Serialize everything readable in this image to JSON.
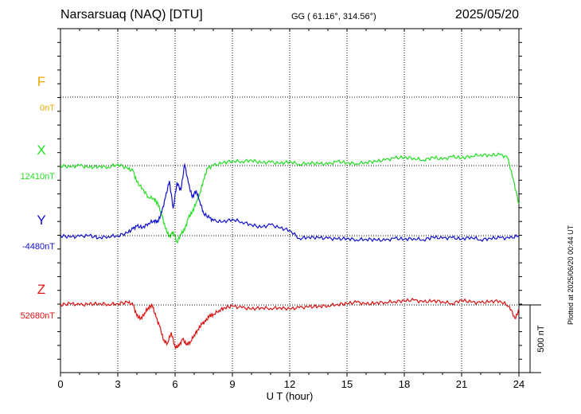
{
  "header": {
    "station": "Narsarsuaq (NAQ)  [DTU]",
    "coords": "GG ( 61.16°, 314.56°)",
    "date": "2025/05/20"
  },
  "footer": {
    "plotted": "Plotted at 2025/06/20 00:44 UT"
  },
  "colors": {
    "F": "#f0a800",
    "X": "#22e022",
    "Y": "#1010d0",
    "Z": "#e01010"
  },
  "chart_data": {
    "type": "line",
    "xlabel": "U T (hour)",
    "xlim": [
      0,
      24
    ],
    "xticks": [
      0,
      3,
      6,
      9,
      12,
      15,
      18,
      21,
      24
    ],
    "grid": true,
    "scale_bar": {
      "label": "500 nT",
      "value_nT": 500
    },
    "series": [
      {
        "name": "F",
        "baseline_label": "0nT",
        "values": []
      },
      {
        "name": "X",
        "baseline_label": "12410nT",
        "x": [
          0,
          0.5,
          1,
          1.5,
          2,
          2.5,
          3,
          3.5,
          3.8,
          4,
          4.3,
          4.6,
          4.9,
          5.1,
          5.3,
          5.5,
          5.7,
          5.9,
          6.1,
          6.3,
          6.5,
          6.7,
          6.9,
          7.1,
          7.3,
          7.5,
          7.7,
          8,
          8.5,
          9,
          9.5,
          10,
          10.5,
          11,
          11.5,
          12,
          12.5,
          13,
          13.5,
          14,
          14.5,
          15,
          15.5,
          16,
          16.5,
          17,
          17.5,
          18,
          18.5,
          19,
          19.5,
          20,
          20.5,
          21,
          21.5,
          22,
          22.5,
          23,
          23.4,
          23.7,
          24
        ],
        "values": [
          0,
          -10,
          0,
          -15,
          -5,
          -10,
          10,
          -20,
          -40,
          -120,
          -170,
          -230,
          -240,
          -280,
          -360,
          -460,
          -520,
          -480,
          -560,
          -500,
          -470,
          -380,
          -340,
          -270,
          -200,
          -100,
          -20,
          0,
          20,
          35,
          30,
          40,
          20,
          25,
          15,
          30,
          10,
          20,
          15,
          10,
          30,
          20,
          15,
          25,
          30,
          40,
          55,
          60,
          55,
          40,
          60,
          45,
          65,
          55,
          70,
          80,
          75,
          80,
          60,
          -100,
          -280
        ]
      },
      {
        "name": "Y",
        "baseline_label": "-4480nT",
        "x": [
          0,
          0.5,
          1,
          1.5,
          2,
          2.5,
          3,
          3.5,
          3.8,
          4,
          4.3,
          4.6,
          4.9,
          5.1,
          5.3,
          5.5,
          5.7,
          5.9,
          6.1,
          6.3,
          6.5,
          6.7,
          6.9,
          7.1,
          7.3,
          7.5,
          7.8,
          8,
          8.5,
          9,
          9.5,
          10,
          10.5,
          11,
          11.5,
          12,
          12.5,
          13,
          13.5,
          14,
          14.5,
          15,
          15.5,
          16,
          16.5,
          17,
          17.5,
          18,
          18.5,
          19,
          19.5,
          20,
          20.5,
          21,
          21.5,
          22,
          22.5,
          23,
          23.5,
          24
        ],
        "values": [
          0,
          -10,
          -5,
          0,
          -15,
          -5,
          0,
          20,
          50,
          70,
          60,
          90,
          110,
          100,
          170,
          280,
          400,
          200,
          390,
          330,
          520,
          380,
          280,
          330,
          250,
          160,
          130,
          110,
          100,
          120,
          100,
          80,
          60,
          80,
          55,
          40,
          -20,
          -10,
          -15,
          -20,
          -25,
          -20,
          -30,
          -25,
          -30,
          -35,
          -20,
          -25,
          -20,
          -30,
          -10,
          -20,
          -15,
          -25,
          -10,
          -30,
          -20,
          -15,
          -20,
          0
        ]
      },
      {
        "name": "Z",
        "baseline_label": "52680nT",
        "x": [
          0,
          0.5,
          1,
          1.5,
          2,
          2.5,
          3,
          3.5,
          3.8,
          4,
          4.2,
          4.4,
          4.6,
          4.8,
          5,
          5.2,
          5.4,
          5.6,
          5.8,
          6,
          6.2,
          6.4,
          6.6,
          6.8,
          7,
          7.2,
          7.4,
          7.6,
          7.8,
          8,
          8.3,
          8.6,
          9,
          9.5,
          10,
          10.5,
          11,
          11.5,
          12,
          12.5,
          13,
          13.5,
          14,
          14.5,
          15,
          15.5,
          16,
          16.5,
          17,
          17.5,
          18,
          18.5,
          19,
          19.5,
          20,
          20.5,
          21,
          21.5,
          22,
          22.5,
          23,
          23.5,
          23.8,
          24
        ],
        "values": [
          0,
          10,
          0,
          5,
          10,
          5,
          10,
          20,
          0,
          -80,
          -100,
          -60,
          -20,
          0,
          -90,
          -160,
          -260,
          -280,
          -200,
          -310,
          -300,
          -250,
          -290,
          -270,
          -220,
          -180,
          -140,
          -120,
          -80,
          -70,
          -40,
          -20,
          -10,
          -20,
          -30,
          -20,
          -25,
          -20,
          -30,
          -20,
          -15,
          -10,
          -5,
          5,
          10,
          20,
          5,
          15,
          20,
          25,
          30,
          35,
          20,
          30,
          25,
          10,
          35,
          20,
          15,
          25,
          30,
          -10,
          -100,
          -40
        ]
      }
    ]
  }
}
